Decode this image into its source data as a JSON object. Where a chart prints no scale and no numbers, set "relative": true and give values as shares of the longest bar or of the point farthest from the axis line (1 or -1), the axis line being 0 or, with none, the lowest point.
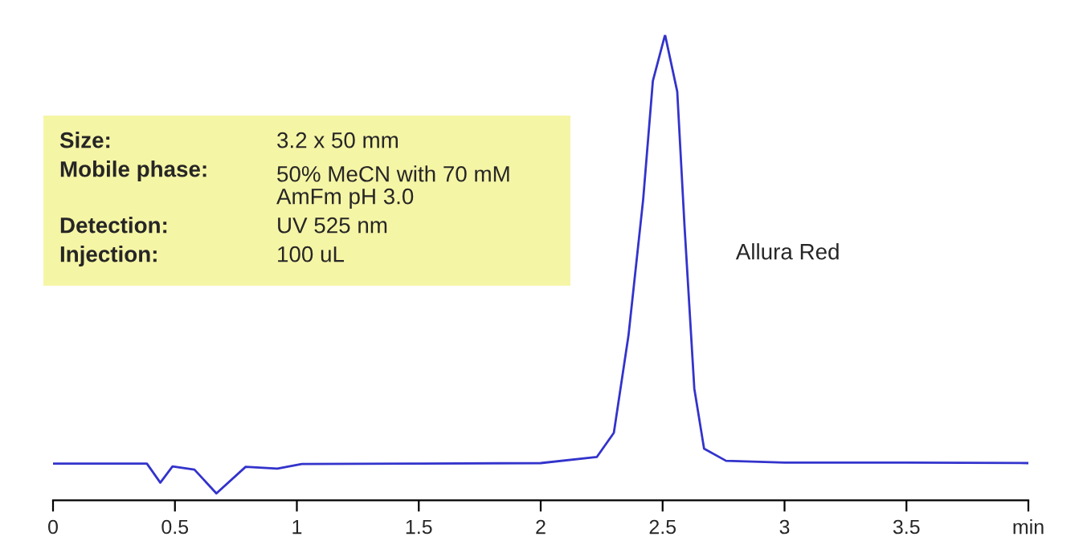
{
  "chart_data": {
    "type": "line",
    "relative": true,
    "x": [
      0,
      0.385,
      0.44,
      0.49,
      0.58,
      0.67,
      0.79,
      0.92,
      1.02,
      1.5,
      2.0,
      2.23,
      2.3,
      2.36,
      2.42,
      2.46,
      2.51,
      2.56,
      2.59,
      2.63,
      2.67,
      2.76,
      3.0,
      3.5,
      4.0
    ],
    "series": [
      {
        "color": "#3333cc",
        "values": [
          0.079,
          0.079,
          0.038,
          0.073,
          0.066,
          0.015,
          0.072,
          0.068,
          0.078,
          0.079,
          0.08,
          0.093,
          0.145,
          0.354,
          0.645,
          0.901,
          1.0,
          0.878,
          0.588,
          0.24,
          0.111,
          0.085,
          0.081,
          0.081,
          0.08
        ]
      }
    ],
    "xlim": [
      0,
      4
    ],
    "xticks": [
      0,
      0.5,
      1,
      1.5,
      2,
      2.5,
      3,
      3.5,
      {
        "value": 4,
        "label": "min"
      }
    ],
    "tick_labels": "x",
    "annotations": [
      "Allura Red",
      "Size:",
      "3.2 x 50 mm",
      "Mobile phase:",
      "50% MeCN with 70 mM\nAmFm pH 3.0",
      "Detection:",
      "UV 525 nm",
      "Injection:",
      "100 uL"
    ]
  }
}
